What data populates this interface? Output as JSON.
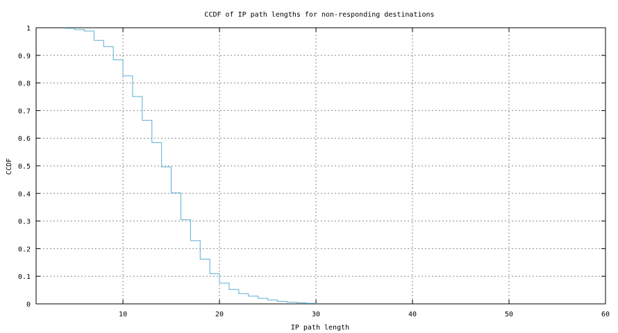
{
  "chart_data": {
    "type": "line",
    "step": true,
    "title": "CCDF of IP path lengths for non-responding destinations",
    "xlabel": "IP path length",
    "ylabel": "CCDF",
    "xlim": [
      1,
      60
    ],
    "ylim": [
      0,
      1
    ],
    "x_ticks": [
      10,
      20,
      30,
      40,
      50,
      60
    ],
    "y_ticks": [
      0,
      0.1,
      0.2,
      0.3,
      0.4,
      0.5,
      0.6,
      0.7,
      0.8,
      0.9,
      1
    ],
    "grid": true,
    "line_color": "#5aaed3",
    "series": [
      {
        "x": [
          4,
          5,
          6,
          7,
          8,
          9,
          10,
          11,
          12,
          13,
          14,
          15,
          16,
          17,
          18,
          19,
          20,
          21,
          22,
          23,
          24,
          25,
          26,
          27,
          28,
          29,
          30
        ],
        "y": [
          0.998,
          0.993,
          0.988,
          0.954,
          0.932,
          0.884,
          0.826,
          0.751,
          0.665,
          0.584,
          0.496,
          0.402,
          0.305,
          0.229,
          0.162,
          0.109,
          0.075,
          0.052,
          0.037,
          0.028,
          0.02,
          0.014,
          0.009,
          0.006,
          0.004,
          0.002,
          0.0
        ]
      }
    ]
  }
}
